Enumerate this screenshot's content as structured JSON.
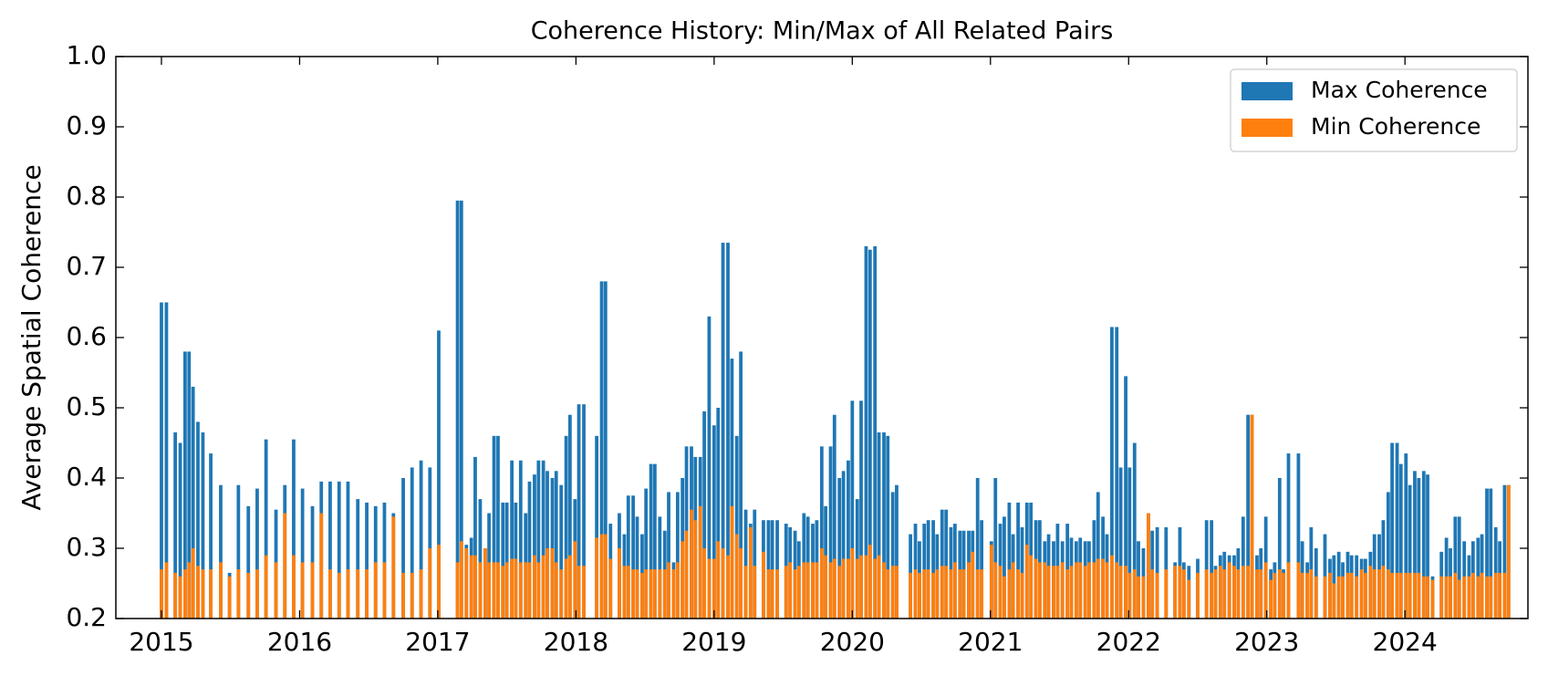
{
  "chart_data": {
    "type": "bar",
    "title": "Coherence History: Min/Max of All Related Pairs",
    "y_label": "Average Spatial Coherence",
    "xlim": [
      2014.67,
      2024.89
    ],
    "xticks": [
      2015,
      2016,
      2017,
      2018,
      2019,
      2020,
      2021,
      2022,
      2023,
      2024
    ],
    "ylim": [
      0.2,
      1.0
    ],
    "yticks": [
      0.2,
      0.3,
      0.4,
      0.5,
      0.6,
      0.7,
      0.8,
      0.9,
      {
        "value": 1.0,
        "label": "1.0"
      }
    ],
    "legend": "upper right",
    "x": [
      2015.0,
      2015.036,
      2015.1,
      2015.136,
      2015.171,
      2015.2,
      2015.229,
      2015.264,
      2015.3,
      2015.357,
      2015.429,
      2015.493,
      2015.557,
      2015.629,
      2015.693,
      2015.757,
      2015.829,
      2015.893,
      2015.957,
      2016.021,
      2016.093,
      2016.157,
      2016.221,
      2016.286,
      2016.35,
      2016.421,
      2016.486,
      2016.55,
      2016.614,
      2016.679,
      2016.75,
      2016.814,
      2016.879,
      2016.943,
      2017.007,
      2017.143,
      2017.171,
      2017.207,
      2017.243,
      2017.271,
      2017.307,
      2017.343,
      2017.371,
      2017.407,
      2017.436,
      2017.471,
      2017.5,
      2017.536,
      2017.564,
      2017.6,
      2017.636,
      2017.664,
      2017.7,
      2017.729,
      2017.764,
      2017.793,
      2017.829,
      2017.857,
      2017.893,
      2017.929,
      2017.957,
      2017.993,
      2018.021,
      2018.057,
      2018.15,
      2018.186,
      2018.214,
      2018.25,
      2018.314,
      2018.35,
      2018.379,
      2018.414,
      2018.443,
      2018.479,
      2018.507,
      2018.543,
      2018.571,
      2018.607,
      2018.643,
      2018.671,
      2018.707,
      2018.736,
      2018.771,
      2018.8,
      2018.836,
      2018.864,
      2018.9,
      2018.929,
      2018.964,
      2019.0,
      2019.029,
      2019.064,
      2019.1,
      2019.129,
      2019.164,
      2019.193,
      2019.229,
      2019.264,
      2019.293,
      2019.357,
      2019.393,
      2019.421,
      2019.457,
      2019.521,
      2019.55,
      2019.586,
      2019.614,
      2019.65,
      2019.679,
      2019.714,
      2019.743,
      2019.779,
      2019.807,
      2019.843,
      2019.871,
      2019.907,
      2019.936,
      2019.971,
      2020.0,
      2020.036,
      2020.064,
      2020.1,
      2020.129,
      2020.164,
      2020.193,
      2020.229,
      2020.257,
      2020.293,
      2020.321,
      2020.421,
      2020.457,
      2020.486,
      2020.521,
      2020.55,
      2020.586,
      2020.614,
      2020.65,
      2020.679,
      2020.714,
      2020.743,
      2020.779,
      2020.807,
      2020.843,
      2020.871,
      2020.907,
      2020.936,
      2021.007,
      2021.036,
      2021.071,
      2021.1,
      2021.136,
      2021.164,
      2021.2,
      2021.229,
      2021.264,
      2021.293,
      2021.329,
      2021.357,
      2021.393,
      2021.421,
      2021.457,
      2021.486,
      2021.521,
      2021.557,
      2021.586,
      2021.621,
      2021.65,
      2021.686,
      2021.714,
      2021.75,
      2021.779,
      2021.814,
      2021.843,
      2021.879,
      2021.914,
      2021.943,
      2021.979,
      2022.007,
      2022.043,
      2022.071,
      2022.107,
      2022.143,
      2022.171,
      2022.207,
      2022.271,
      2022.336,
      2022.371,
      2022.4,
      2022.436,
      2022.5,
      2022.564,
      2022.6,
      2022.629,
      2022.664,
      2022.693,
      2022.729,
      2022.764,
      2022.793,
      2022.829,
      2022.864,
      2022.893,
      2022.929,
      2022.957,
      2022.993,
      2023.029,
      2023.057,
      2023.093,
      2023.121,
      2023.157,
      2023.229,
      2023.257,
      2023.293,
      2023.321,
      2023.357,
      2023.421,
      2023.457,
      2023.486,
      2023.521,
      2023.55,
      2023.586,
      2023.614,
      2023.65,
      2023.686,
      2023.714,
      2023.75,
      2023.779,
      2023.814,
      2023.843,
      2023.879,
      2023.907,
      2023.943,
      2023.971,
      2024.007,
      2024.036,
      2024.071,
      2024.1,
      2024.136,
      2024.164,
      2024.2,
      2024.264,
      2024.3,
      2024.329,
      2024.364,
      2024.393,
      2024.429,
      2024.464,
      2024.493,
      2024.529,
      2024.557,
      2024.593,
      2024.621,
      2024.657,
      2024.686,
      2024.721,
      2024.75
    ],
    "series": [
      {
        "name": "Max Coherence",
        "color": "#1f77b4",
        "values": [
          0.65,
          0.65,
          0.465,
          0.45,
          0.58,
          0.58,
          0.53,
          0.48,
          0.465,
          0.435,
          0.39,
          0.265,
          0.39,
          0.36,
          0.385,
          0.455,
          0.355,
          0.39,
          0.455,
          0.385,
          0.36,
          0.395,
          0.395,
          0.395,
          0.395,
          0.37,
          0.365,
          0.36,
          0.365,
          0.35,
          0.4,
          0.415,
          0.425,
          0.415,
          0.61,
          0.795,
          0.795,
          0.305,
          0.315,
          0.43,
          0.37,
          0.3,
          0.35,
          0.46,
          0.46,
          0.365,
          0.365,
          0.425,
          0.365,
          0.425,
          0.35,
          0.395,
          0.405,
          0.425,
          0.425,
          0.41,
          0.4,
          0.41,
          0.39,
          0.46,
          0.49,
          0.37,
          0.505,
          0.505,
          0.46,
          0.68,
          0.68,
          0.335,
          0.35,
          0.32,
          0.375,
          0.375,
          0.345,
          0.32,
          0.385,
          0.42,
          0.42,
          0.345,
          0.325,
          0.38,
          0.28,
          0.38,
          0.4,
          0.445,
          0.445,
          0.43,
          0.43,
          0.495,
          0.63,
          0.475,
          0.5,
          0.735,
          0.735,
          0.57,
          0.46,
          0.58,
          0.355,
          0.335,
          0.355,
          0.34,
          0.34,
          0.34,
          0.34,
          0.335,
          0.33,
          0.325,
          0.31,
          0.35,
          0.345,
          0.335,
          0.34,
          0.445,
          0.36,
          0.445,
          0.49,
          0.4,
          0.41,
          0.425,
          0.51,
          0.37,
          0.51,
          0.73,
          0.725,
          0.73,
          0.465,
          0.465,
          0.46,
          0.38,
          0.39,
          0.32,
          0.335,
          0.31,
          0.335,
          0.34,
          0.34,
          0.32,
          0.355,
          0.355,
          0.33,
          0.335,
          0.325,
          0.325,
          0.325,
          0.325,
          0.4,
          0.34,
          0.31,
          0.4,
          0.335,
          0.345,
          0.365,
          0.32,
          0.365,
          0.33,
          0.365,
          0.365,
          0.34,
          0.34,
          0.31,
          0.32,
          0.31,
          0.335,
          0.31,
          0.335,
          0.315,
          0.31,
          0.315,
          0.31,
          0.31,
          0.34,
          0.38,
          0.345,
          0.32,
          0.615,
          0.615,
          0.415,
          0.545,
          0.415,
          0.45,
          0.31,
          0.3,
          0.35,
          0.325,
          0.33,
          0.33,
          0.28,
          0.33,
          0.28,
          0.275,
          0.285,
          0.34,
          0.34,
          0.275,
          0.29,
          0.295,
          0.29,
          0.29,
          0.3,
          0.345,
          0.49,
          0.49,
          0.29,
          0.3,
          0.345,
          0.27,
          0.28,
          0.4,
          0.27,
          0.435,
          0.435,
          0.31,
          0.28,
          0.33,
          0.3,
          0.32,
          0.285,
          0.29,
          0.295,
          0.28,
          0.295,
          0.29,
          0.29,
          0.285,
          0.285,
          0.295,
          0.32,
          0.32,
          0.34,
          0.38,
          0.45,
          0.45,
          0.42,
          0.435,
          0.39,
          0.41,
          0.4,
          0.41,
          0.405,
          0.26,
          0.295,
          0.315,
          0.3,
          0.345,
          0.345,
          0.31,
          0.29,
          0.31,
          0.315,
          0.32,
          0.385,
          0.385,
          0.33,
          0.31,
          0.39,
          0.39
        ]
      },
      {
        "name": "Min Coherence",
        "color": "#ff7f0e",
        "values": [
          0.27,
          0.28,
          0.265,
          0.26,
          0.27,
          0.28,
          0.3,
          0.275,
          0.27,
          0.27,
          0.28,
          0.26,
          0.27,
          0.265,
          0.27,
          0.29,
          0.28,
          0.35,
          0.29,
          0.28,
          0.28,
          0.35,
          0.27,
          0.265,
          0.27,
          0.27,
          0.27,
          0.28,
          0.28,
          0.345,
          0.265,
          0.265,
          0.27,
          0.3,
          0.305,
          0.28,
          0.31,
          0.3,
          0.29,
          0.29,
          0.28,
          0.3,
          0.28,
          0.28,
          0.28,
          0.275,
          0.28,
          0.285,
          0.285,
          0.28,
          0.28,
          0.28,
          0.29,
          0.28,
          0.29,
          0.3,
          0.3,
          0.28,
          0.27,
          0.285,
          0.29,
          0.31,
          0.275,
          0.275,
          0.315,
          0.32,
          0.32,
          0.285,
          0.3,
          0.275,
          0.275,
          0.27,
          0.27,
          0.265,
          0.27,
          0.27,
          0.27,
          0.27,
          0.27,
          0.28,
          0.27,
          0.28,
          0.31,
          0.325,
          0.355,
          0.34,
          0.36,
          0.3,
          0.285,
          0.285,
          0.31,
          0.3,
          0.29,
          0.36,
          0.32,
          0.3,
          0.275,
          0.33,
          0.275,
          0.295,
          0.27,
          0.27,
          0.27,
          0.275,
          0.28,
          0.27,
          0.275,
          0.28,
          0.28,
          0.28,
          0.28,
          0.3,
          0.29,
          0.28,
          0.285,
          0.275,
          0.285,
          0.285,
          0.3,
          0.285,
          0.29,
          0.29,
          0.305,
          0.285,
          0.29,
          0.28,
          0.27,
          0.275,
          0.275,
          0.265,
          0.27,
          0.265,
          0.27,
          0.27,
          0.265,
          0.27,
          0.275,
          0.275,
          0.27,
          0.28,
          0.27,
          0.27,
          0.28,
          0.295,
          0.27,
          0.27,
          0.305,
          0.28,
          0.275,
          0.26,
          0.27,
          0.28,
          0.27,
          0.265,
          0.305,
          0.29,
          0.285,
          0.28,
          0.28,
          0.275,
          0.275,
          0.275,
          0.28,
          0.27,
          0.275,
          0.28,
          0.28,
          0.275,
          0.28,
          0.28,
          0.285,
          0.285,
          0.28,
          0.29,
          0.28,
          0.275,
          0.275,
          0.265,
          0.27,
          0.26,
          0.26,
          0.35,
          0.27,
          0.265,
          0.27,
          0.275,
          0.275,
          0.27,
          0.255,
          0.265,
          0.27,
          0.265,
          0.27,
          0.275,
          0.27,
          0.28,
          0.275,
          0.27,
          0.275,
          0.275,
          0.49,
          0.27,
          0.27,
          0.28,
          0.255,
          0.265,
          0.27,
          0.265,
          0.28,
          0.28,
          0.265,
          0.265,
          0.27,
          0.26,
          0.26,
          0.265,
          0.25,
          0.26,
          0.26,
          0.265,
          0.265,
          0.26,
          0.27,
          0.265,
          0.275,
          0.27,
          0.27,
          0.275,
          0.27,
          0.265,
          0.265,
          0.265,
          0.265,
          0.265,
          0.265,
          0.265,
          0.26,
          0.26,
          0.255,
          0.26,
          0.26,
          0.26,
          0.265,
          0.255,
          0.26,
          0.26,
          0.265,
          0.26,
          0.265,
          0.26,
          0.26,
          0.265,
          0.265,
          0.265,
          0.39
        ]
      }
    ]
  }
}
